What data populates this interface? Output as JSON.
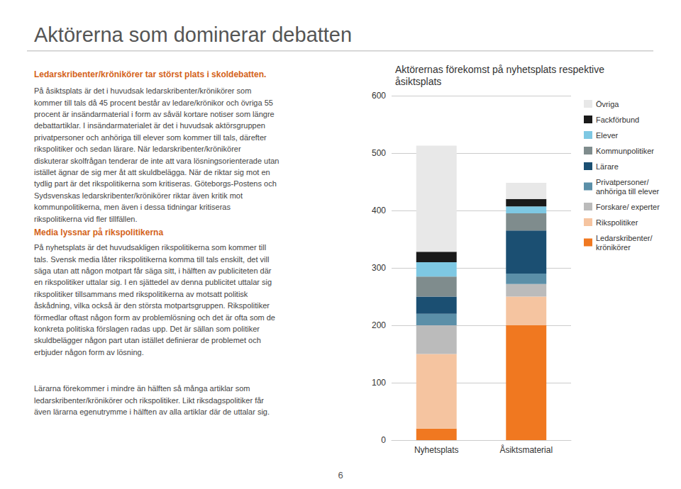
{
  "chart_data": {
    "type": "bar",
    "stacked": true,
    "title": "Aktörernas förekomst på nyhetsplats respektive\nåsiktsplats",
    "categories": [
      "Nyhetsplats",
      "Åsiktsmaterial"
    ],
    "series": [
      {
        "name": "Ledarskribenter/\nkrönikörer",
        "color": "#F07820",
        "values": [
          20,
          200
        ]
      },
      {
        "name": "Rikspolitiker",
        "color": "#F5C4A0",
        "values": [
          130,
          50
        ]
      },
      {
        "name": "Forskare/ experter",
        "color": "#BBBBBB",
        "values": [
          50,
          22
        ]
      },
      {
        "name": "Privatpersoner/\nanhöriga till elever",
        "color": "#5B8FA8",
        "values": [
          20,
          18
        ]
      },
      {
        "name": "Lärare",
        "color": "#1B4F72",
        "values": [
          30,
          75
        ]
      },
      {
        "name": "Kommunpolitiker",
        "color": "#7F8C8D",
        "values": [
          35,
          30
        ]
      },
      {
        "name": "Elever",
        "color": "#7EC8E3",
        "values": [
          25,
          12
        ]
      },
      {
        "name": "Fackförbund",
        "color": "#1A1A1A",
        "values": [
          18,
          13
        ]
      },
      {
        "name": "Övriga",
        "color": "#E8E8E8",
        "values": [
          185,
          28
        ]
      }
    ],
    "ylim": [
      0,
      600
    ],
    "yticks": [
      0,
      100,
      200,
      300,
      400,
      500,
      600
    ],
    "grid": true,
    "legend": "right",
    "annotations": [
      "Aktörerna som dominerar debatten",
      "Ledarskribenter/krönikörer tar störst plats i skoldebatten.",
      "På åsiktsplats är det i huvudsak ledarskribenter/krönikörer som\nkommer till tals då 45 procent består av ledare/krönikor och övriga 55\nprocent är insändarmaterial i form av såväl kortare notiser som längre\ndebattartiklar. I insändarmaterialet är det i huvudsak aktörsgruppen\nprivatpersoner och anhöriga till elever som kommer till tals, därefter\nrikspolitiker och sedan lärare. När ledarskribenter/krönikörer\ndiskuterar skolfrågan tenderar de inte att vara lösningsorienterade utan\nistället ägnar de sig mer åt att skuldbelägga. När de riktar sig mot en\ntydlig part är det rikspolitikerna som kritiseras. Göteborgs-Postens och\nSydsvenskas ledarskribenter/krönikörer riktar även kritik mot\nkommunpolitikerna, men även i dessa tidningar kritiseras\nrikspolitikerna vid fler tillfällen.",
      "Media lyssnar på rikspolitikerna",
      "På nyhetsplats är det huvudsakligen rikspolitikerna som kommer till\ntals. Svensk media låter rikspolitikerna komma till tals enskilt, det vill\nsäga utan att någon motpart får säga sitt, i hälften av publiciteten där\nen rikspolitiker uttalar sig. I en sjättedel av denna publicitet uttalar sig\nrikspolitiker tillsammans med rikspolitikerna av motsatt politisk\nåskådning, vilka också är den största motpartsgruppen. Rikspolitiker\nförmedlar oftast någon form av problemlösning och det är ofta som de\nkonkreta politiska förslagen radas upp. Det är sällan som politiker\nskuldbelägger någon part utan istället definierar de problemet och\nerbjuder någon form av lösning.",
      "Lärarna förekommer i mindre än hälften så många artiklar som\nledarskribenter/krönikörer och rikspolitiker. Likt riksdagspolitiker får\näven lärarna egenutrymme i hälften av alla artiklar där de uttalar sig.",
      "6"
    ]
  }
}
